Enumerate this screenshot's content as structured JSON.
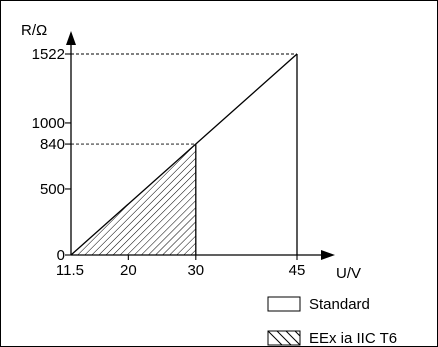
{
  "chart_data": {
    "type": "line",
    "xlabel": "U/V",
    "ylabel": "R/Ω",
    "x_ticks": [
      "11.5",
      "20",
      "30",
      "45"
    ],
    "x_tick_values": [
      11.5,
      20,
      30,
      45
    ],
    "y_ticks": [
      "0",
      "500",
      "840",
      "1000",
      "1522"
    ],
    "y_tick_values": [
      0,
      500,
      840,
      1000,
      1522
    ],
    "series": [
      {
        "name": "Standard",
        "points": [
          [
            11.5,
            0
          ],
          [
            45,
            1522
          ]
        ],
        "region_bounds": {
          "x_min": 11.5,
          "x_max": 45
        },
        "fill": "none"
      },
      {
        "name": "EEx ia IIC T6",
        "points": [
          [
            11.5,
            0
          ],
          [
            30,
            840
          ]
        ],
        "region_bounds": {
          "x_min": 11.5,
          "x_max": 30
        },
        "fill": "hatched"
      }
    ],
    "reference_lines": [
      {
        "x": 30,
        "y": 840,
        "style": "dashed"
      },
      {
        "x": 45,
        "y": 1522,
        "style": "dashed"
      }
    ],
    "legend": {
      "position": "bottom-right",
      "entries": [
        {
          "label": "Standard",
          "swatch": "empty"
        },
        {
          "label": "EEx ia IIC T6",
          "swatch": "hatched"
        }
      ]
    },
    "grid": false,
    "colors": {
      "line": "#000000",
      "background": "#ffffff"
    }
  }
}
